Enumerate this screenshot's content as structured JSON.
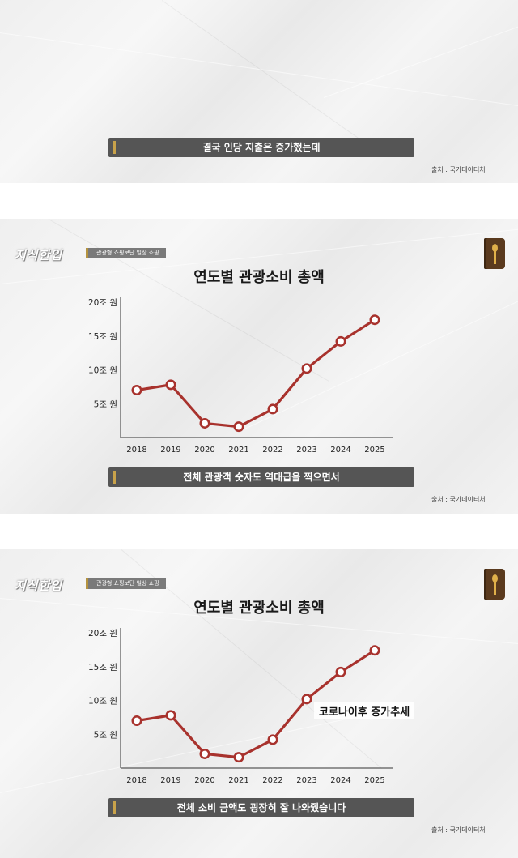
{
  "branding": {
    "channel_name": "지식한입",
    "segment_tag": "관광형 쇼핑보단 일상 쇼핑"
  },
  "source": "출처 : 국가데이터처",
  "colors": {
    "line": "#a8322d",
    "caption_bg": "#555555",
    "accent": "#c8a24a"
  },
  "panels": [
    {
      "id": "panel-1",
      "caption": "결국 인당 지출은 증가했는데",
      "annotation": ""
    },
    {
      "id": "panel-2",
      "caption": "전체 관광객 숫자도 역대급을 찍으면서",
      "annotation": ""
    },
    {
      "id": "panel-3",
      "caption": "전체 소비 금액도 굉장히 잘 나와줬습니다",
      "annotation": "코로나이후 증가추세"
    }
  ],
  "chart_data": {
    "type": "line",
    "title": "연도별 관광소비 총액",
    "categories": [
      "2018",
      "2019",
      "2020",
      "2021",
      "2022",
      "2023",
      "2024",
      "2025"
    ],
    "values": [
      7.0,
      7.8,
      2.1,
      1.6,
      4.2,
      10.2,
      14.2,
      17.4
    ],
    "yticks": [
      {
        "value": 5,
        "label": "5조 원"
      },
      {
        "value": 10,
        "label": "10조 원"
      },
      {
        "value": 15,
        "label": "15조 원"
      },
      {
        "value": 20,
        "label": "20조 원"
      }
    ],
    "ylim": [
      0,
      20
    ],
    "xlabel": "",
    "ylabel": "",
    "grid": false
  }
}
